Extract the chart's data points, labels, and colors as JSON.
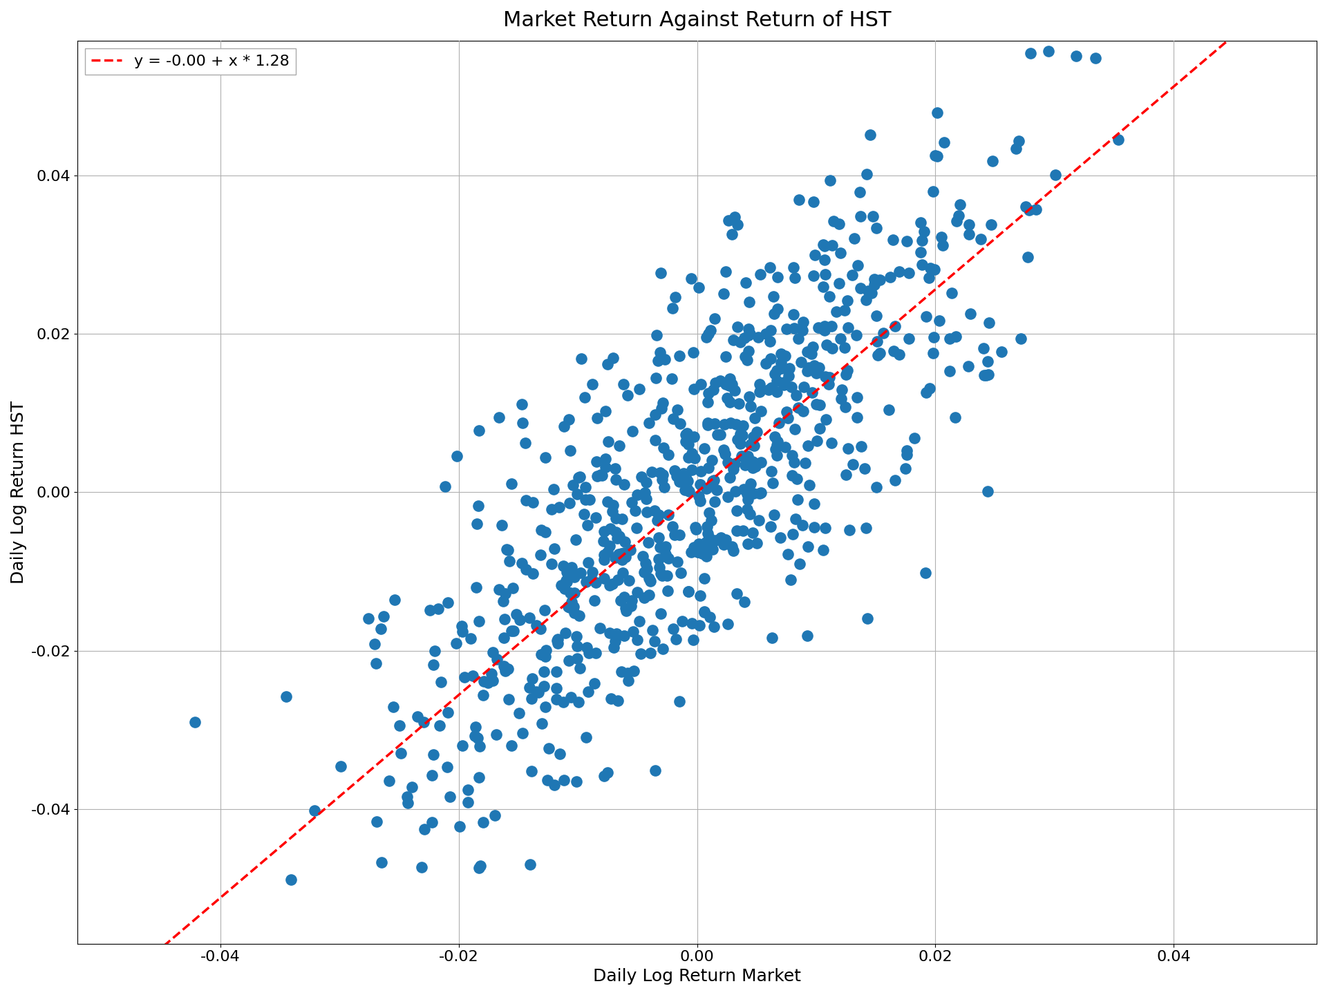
{
  "title": "Market Return Against Return of HST",
  "xlabel": "Daily Log Return Market",
  "ylabel": "Daily Log Return HST",
  "legend_label": "y = -0.00 + x * 1.28",
  "intercept": -0.0,
  "slope": 1.28,
  "xlim": [
    -0.052,
    0.052
  ],
  "ylim": [
    -0.057,
    0.057
  ],
  "xticks": [
    -0.04,
    -0.02,
    0.0,
    0.02,
    0.04
  ],
  "yticks": [
    -0.04,
    -0.02,
    0.0,
    0.02,
    0.04
  ],
  "dot_color": "#1f77b4",
  "line_color": "#ff0000",
  "dot_size": 120,
  "n_points": 750,
  "seed": 42,
  "market_std": 0.013,
  "noise_std": 0.012,
  "title_fontsize": 22,
  "label_fontsize": 18,
  "tick_fontsize": 16,
  "legend_fontsize": 16,
  "background_color": "#ffffff",
  "grid_color": "#b0b0b0"
}
